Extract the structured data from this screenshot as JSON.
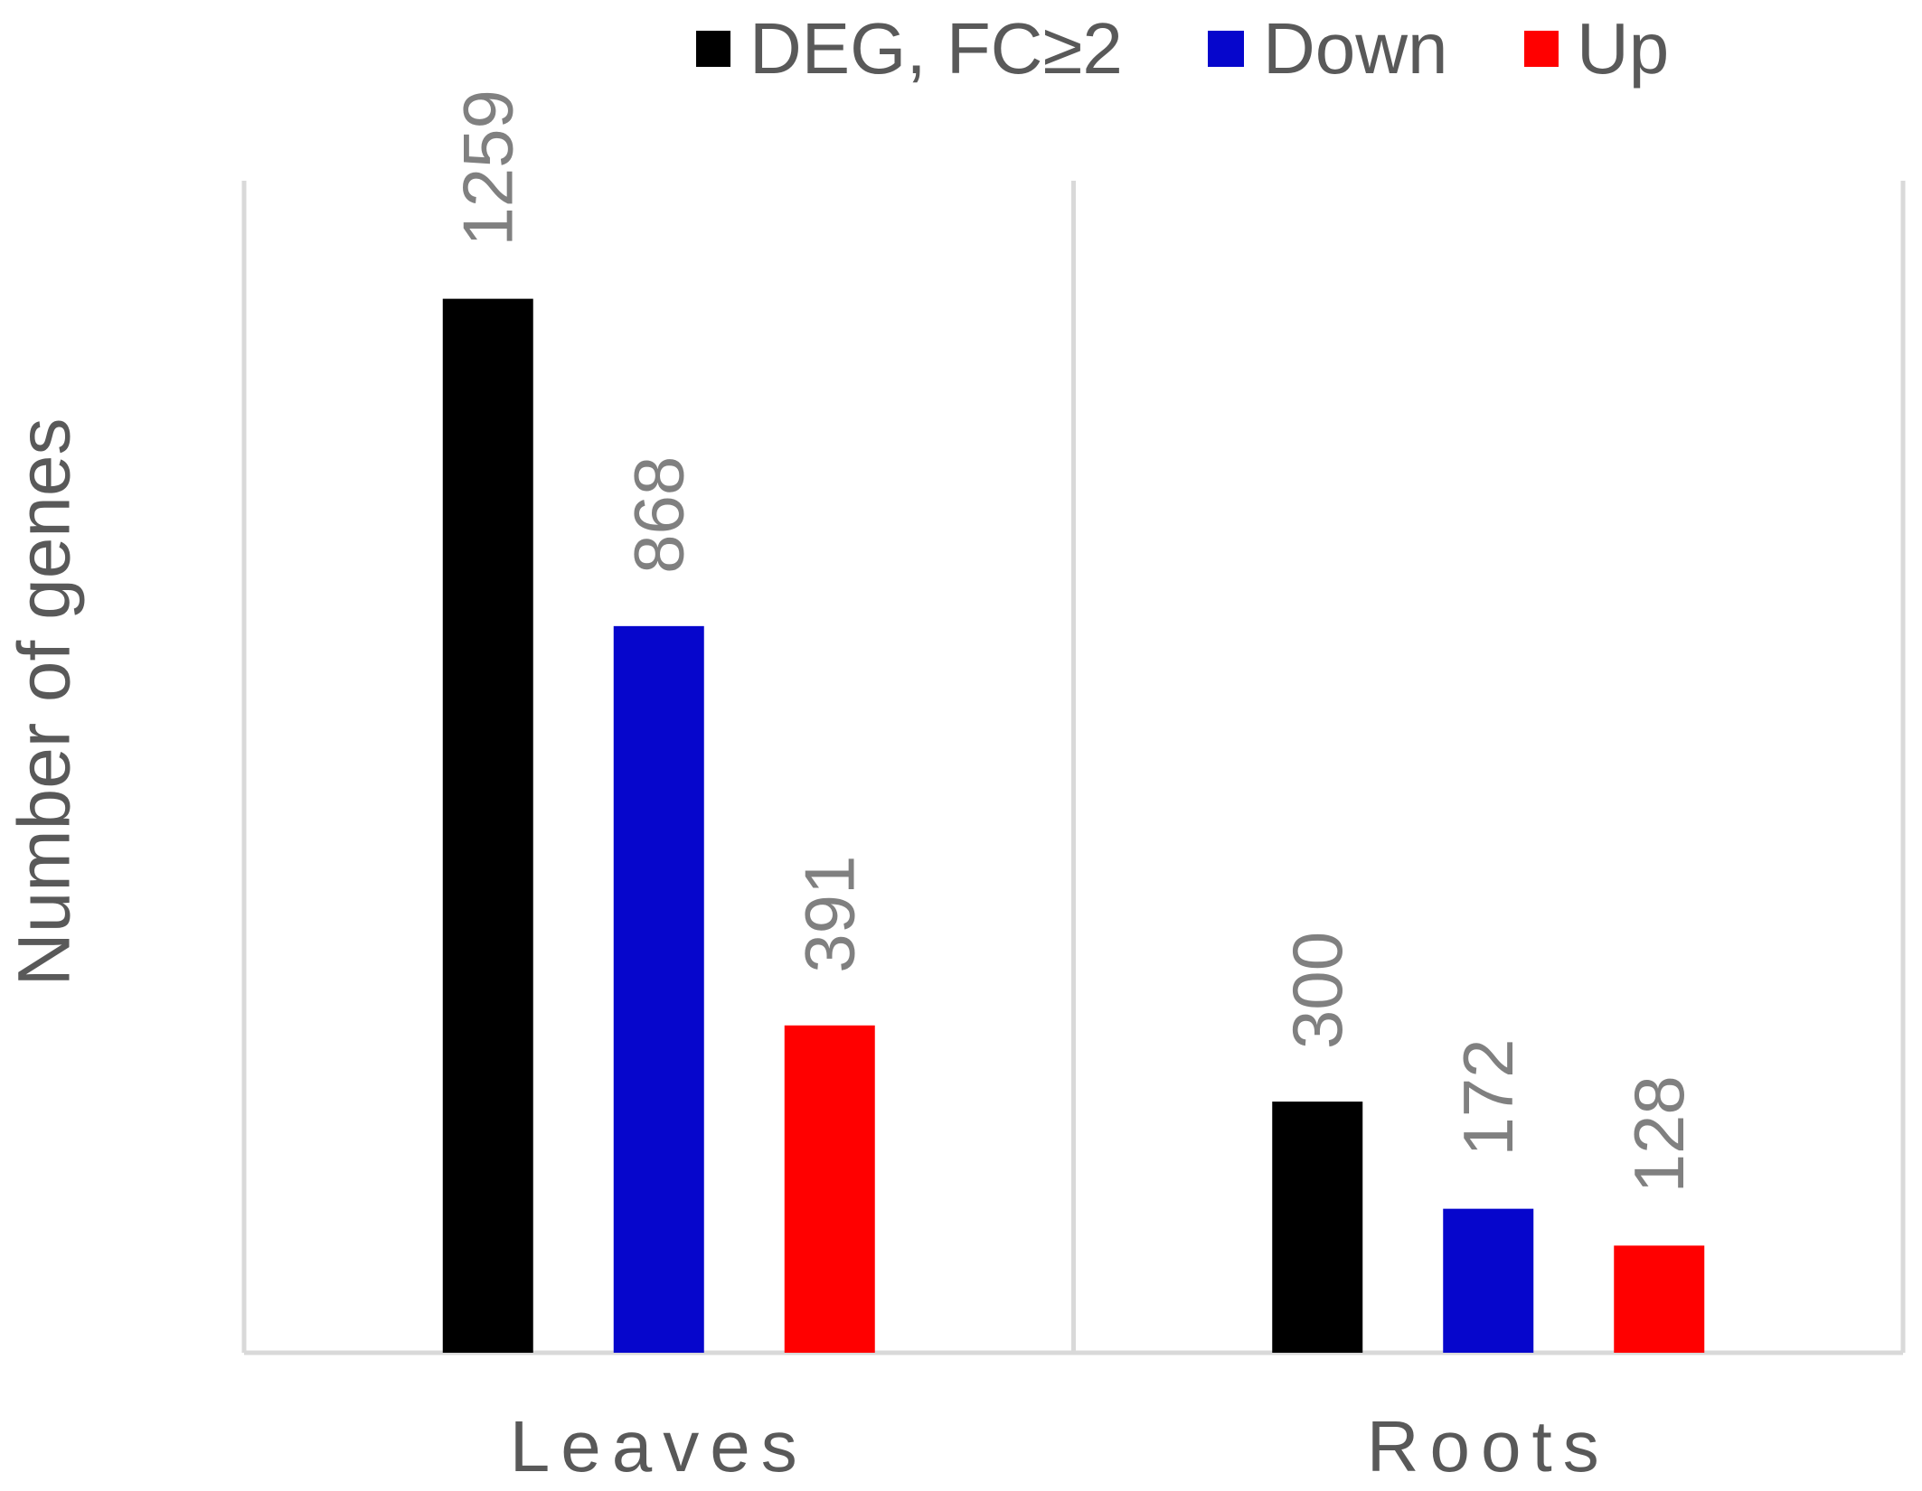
{
  "chart_data": {
    "type": "bar",
    "categories": [
      "Leaves",
      "Roots"
    ],
    "series": [
      {
        "name": "DEG, FC≥2",
        "values": [
          1259,
          300
        ],
        "color": "#000000"
      },
      {
        "name": "Down",
        "values": [
          868,
          172
        ],
        "color": "#0606cc"
      },
      {
        "name": "Up",
        "values": [
          391,
          128
        ],
        "color": "#ff0000"
      }
    ],
    "ylabel": "Number of genes",
    "ylim": [
      0,
      1400
    ],
    "data_labels": true,
    "legend_position": "top",
    "grid": false,
    "category_dividers": true
  },
  "colors": {
    "axis_line": "#d9d9d9",
    "data_label": "#808080",
    "text": "#595959"
  }
}
